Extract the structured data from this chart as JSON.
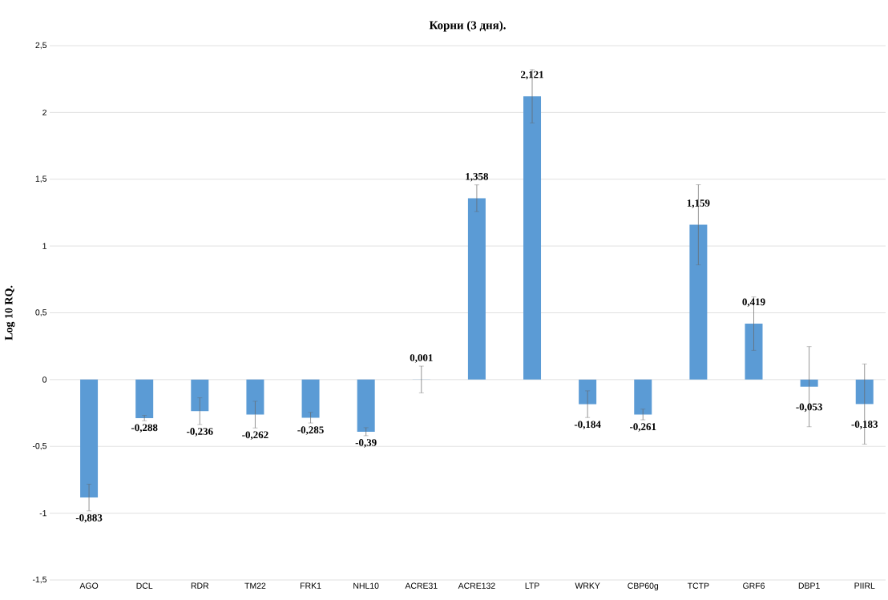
{
  "chart_data": {
    "type": "bar",
    "title": "Корни (3 дня).",
    "ylabel": "Log 10 RQ.",
    "categories": [
      "AGO",
      "DCL",
      "RDR",
      "TM22",
      "FRK1",
      "NHL10",
      "ACRE31",
      "ACRE132",
      "LTP",
      "WRKY",
      "CBP60g",
      "TCTP",
      "GRF6",
      "DBP1",
      "PIIRL"
    ],
    "values": [
      -0.883,
      -0.288,
      -0.236,
      -0.262,
      -0.285,
      -0.39,
      0.001,
      1.358,
      2.121,
      -0.184,
      -0.261,
      1.159,
      0.419,
      -0.053,
      -0.183
    ],
    "errors": [
      0.1,
      0.02,
      0.1,
      0.1,
      0.04,
      0.03,
      0.1,
      0.1,
      0.2,
      0.1,
      0.04,
      0.3,
      0.2,
      0.3,
      0.3
    ],
    "value_labels": [
      "-0,883",
      "-0,288",
      "-0,236",
      "-0,262",
      "-0,285",
      "-0,39",
      "0,001",
      "1,358",
      "2,121",
      "-0,184",
      "-0,261",
      "1,159",
      "0,419",
      "-0,053",
      "-0,183"
    ],
    "color": "#5b9bd5",
    "ylim": [
      -1.5,
      2.5
    ],
    "yticks": [
      {
        "value": -1.5,
        "label": "-1,5"
      },
      -1,
      {
        "value": -0.5,
        "label": "-0,5"
      },
      0,
      {
        "value": 0.5,
        "label": "0,5"
      },
      1,
      {
        "value": 1.5,
        "label": "1,5"
      },
      2,
      {
        "value": 2.5,
        "label": "2,5"
      }
    ],
    "grid": "y"
  }
}
